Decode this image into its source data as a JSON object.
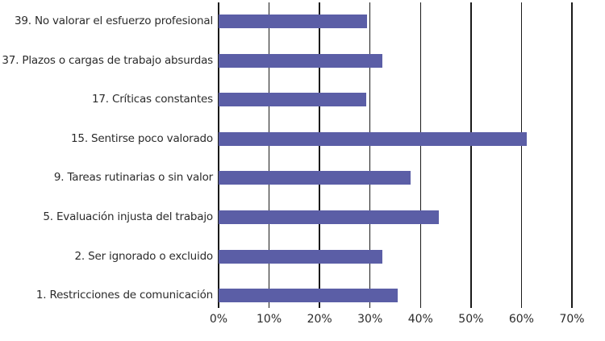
{
  "chart_data": {
    "type": "bar",
    "orientation": "horizontal",
    "title": "",
    "xlabel": "",
    "ylabel": "",
    "categories": [
      "39. No valorar el esfuerzo profesional",
      "37. Plazos o cargas de trabajo absurdas",
      "17. Críticas constantes",
      "15. Sentirse poco valorado",
      "9. Tareas rutinarias o sin valor",
      "5. Evaluación injusta del trabajo",
      "2. Ser ignorado o excluido",
      "1. Restricciones de comunicación"
    ],
    "values": [
      29.4,
      32.5,
      29.2,
      61.0,
      38.0,
      43.7,
      32.4,
      35.4
    ],
    "unit": "%",
    "xlim": [
      0,
      70
    ],
    "xticks": [
      "0%",
      "10%",
      "20%",
      "30%",
      "40%",
      "50%",
      "60%",
      "70%"
    ],
    "grid": "vertical",
    "legend": null,
    "bar_color": "#5b5ea6"
  }
}
